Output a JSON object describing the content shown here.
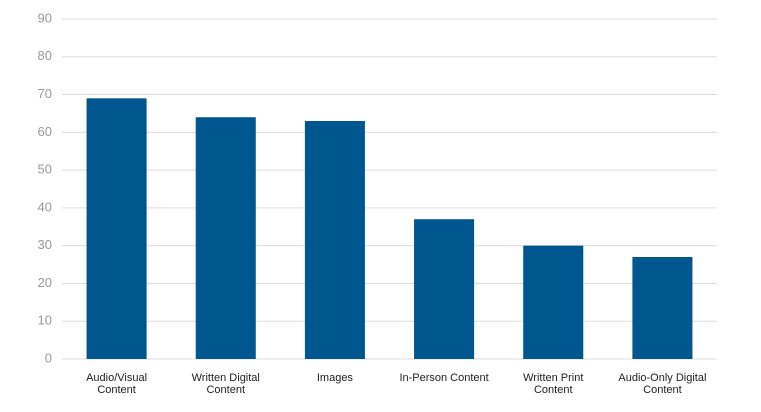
{
  "chart_data": {
    "type": "bar",
    "categories": [
      "Audio/Visual Content",
      "Written Digital Content",
      "Images",
      "In-Person Content",
      "Written Print Content",
      "Audio-Only Digital Content"
    ],
    "values": [
      69,
      64,
      63,
      37,
      30,
      27
    ],
    "color": "#00568f",
    "ylim": [
      0,
      90
    ],
    "yticks": [
      0,
      10,
      20,
      30,
      40,
      50,
      60,
      70,
      80,
      90
    ],
    "grid": true
  }
}
